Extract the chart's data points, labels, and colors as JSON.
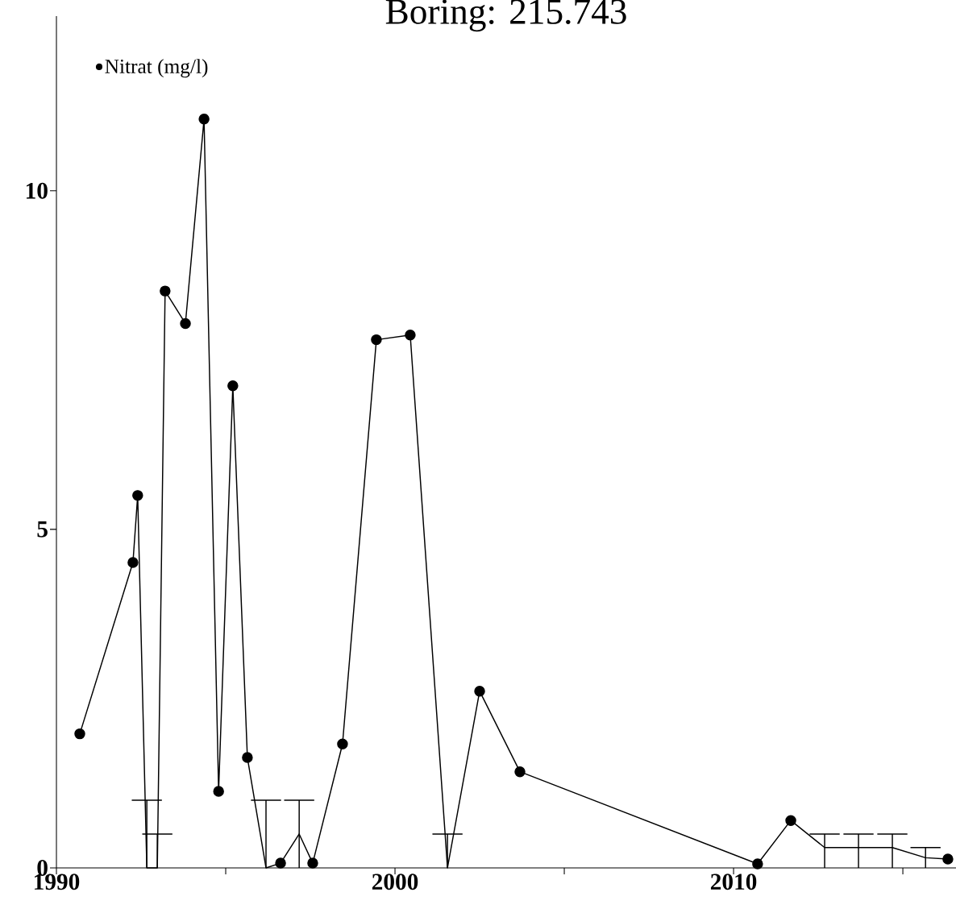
{
  "chart_data": {
    "type": "line",
    "title": "Boring: 215.743",
    "x": [
      1990.69,
      1992.26,
      1992.4,
      1992.67,
      1992.98,
      1993.21,
      1993.81,
      1994.36,
      1994.79,
      1995.21,
      1995.64,
      1996.19,
      1996.62,
      1997.17,
      1997.57,
      1998.45,
      1999.45,
      2000.45,
      2001.55,
      2002.5,
      2003.69,
      2010.71,
      2011.69,
      2012.69,
      2013.69,
      2014.69,
      2015.67,
      2016.33
    ],
    "series": [
      {
        "name": "Nitrat (mg/l)",
        "color": "#000000",
        "values": [
          1.98,
          4.51,
          5.5,
          0,
          0,
          8.52,
          8.04,
          11.06,
          1.13,
          7.12,
          1.63,
          0,
          0.07,
          0.5,
          0.07,
          1.83,
          7.8,
          7.87,
          0,
          2.61,
          1.42,
          0.06,
          0.7,
          0.3,
          0.3,
          0.3,
          0.15,
          0.13
        ],
        "errors": [
          null,
          null,
          null,
          [
            0,
            1
          ],
          [
            0,
            0.5
          ],
          null,
          null,
          null,
          null,
          null,
          null,
          [
            0,
            1
          ],
          null,
          [
            0,
            1
          ],
          null,
          null,
          null,
          null,
          [
            0,
            0.5
          ],
          null,
          null,
          null,
          null,
          [
            0,
            0.5
          ],
          [
            0,
            0.5
          ],
          [
            0,
            0.5
          ],
          [
            0,
            0.3
          ],
          null
        ]
      }
    ],
    "xlim": [
      1990,
      2016.57
    ],
    "ylim": [
      0,
      12.58
    ],
    "xticks": [
      1990,
      {
        "value": 1995,
        "label": null
      },
      2000,
      {
        "value": 2005,
        "label": null
      },
      2010,
      {
        "value": 2015,
        "label": null
      }
    ],
    "yticks": [
      0,
      5,
      10
    ],
    "marker": "circle",
    "line_style": "solid",
    "grid": false,
    "legend": "top left"
  }
}
